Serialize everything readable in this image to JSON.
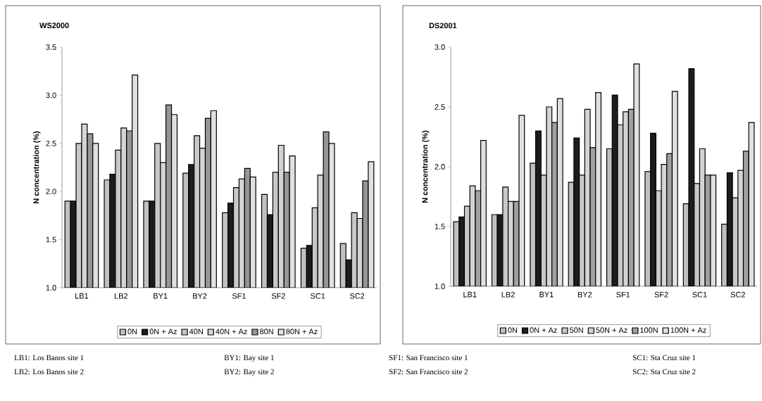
{
  "chart_data": [
    {
      "type": "bar",
      "title": "WS2000",
      "ylabel": "N concentration (%)",
      "categories": [
        "LB1",
        "LB2",
        "BY1",
        "BY2",
        "SF1",
        "SF2",
        "SC1",
        "SC2"
      ],
      "series": [
        {
          "name": "0N",
          "color": "#c0c0c0",
          "values": [
            1.9,
            2.12,
            1.9,
            2.19,
            1.78,
            1.97,
            1.41,
            1.46
          ]
        },
        {
          "name": "0N + Az",
          "color": "#1c1c1c",
          "values": [
            1.9,
            2.18,
            1.9,
            2.28,
            1.88,
            1.76,
            1.44,
            1.29
          ]
        },
        {
          "name": "40N",
          "color": "#c8c8c8",
          "values": [
            2.5,
            2.43,
            2.5,
            2.58,
            2.04,
            2.2,
            1.83,
            1.78
          ]
        },
        {
          "name": "40N + Az",
          "color": "#d4d4d4",
          "values": [
            2.7,
            2.66,
            2.3,
            2.45,
            2.13,
            2.48,
            2.17,
            1.72
          ]
        },
        {
          "name": "80N",
          "color": "#969696",
          "values": [
            2.6,
            2.63,
            2.9,
            2.76,
            2.24,
            2.2,
            2.62,
            2.11
          ]
        },
        {
          "name": "80N + Az",
          "color": "#e0e0e0",
          "values": [
            2.5,
            3.21,
            2.8,
            2.84,
            2.15,
            2.37,
            2.5,
            2.31
          ]
        }
      ],
      "ylim": [
        1,
        3.5
      ],
      "yticks": [
        {
          "value": 1,
          "label": "1.0"
        },
        {
          "value": 1.5,
          "label": "1.5"
        },
        {
          "value": 2,
          "label": "2.0"
        },
        {
          "value": 2.5,
          "label": "2.5"
        },
        {
          "value": 3,
          "label": "3.0"
        },
        {
          "value": 3.5,
          "label": "3.5"
        }
      ],
      "legend": "bottom",
      "annotations": [
        "LB1: Los Banos site 1",
        "LB2: Los Banos site 2",
        "BY1: Bay site 1",
        "BY2: Bay site 2"
      ]
    },
    {
      "type": "bar",
      "title": "DS2001",
      "ylabel": "N concentration (%)",
      "categories": [
        "LB1",
        "LB2",
        "BY1",
        "BY2",
        "SF1",
        "SF2",
        "SC1",
        "SC2"
      ],
      "series": [
        {
          "name": "0N",
          "color": "#c0c0c0",
          "values": [
            1.54,
            1.6,
            2.03,
            1.87,
            2.15,
            1.96,
            1.69,
            1.52
          ]
        },
        {
          "name": "0N + Az",
          "color": "#1c1c1c",
          "values": [
            1.58,
            1.6,
            2.3,
            2.24,
            2.6,
            2.28,
            2.82,
            1.95
          ]
        },
        {
          "name": "50N",
          "color": "#c8c8c8",
          "values": [
            1.67,
            1.83,
            1.93,
            1.93,
            2.35,
            1.8,
            1.86,
            1.74
          ]
        },
        {
          "name": "50N + Az",
          "color": "#d4d4d4",
          "values": [
            1.84,
            1.71,
            2.5,
            2.48,
            2.46,
            2.02,
            2.15,
            1.97
          ]
        },
        {
          "name": "100N",
          "color": "#a0a0a0",
          "values": [
            1.8,
            1.71,
            2.37,
            2.16,
            2.48,
            2.11,
            1.93,
            2.13
          ]
        },
        {
          "name": "100N + Az",
          "color": "#e0e0e0",
          "values": [
            2.22,
            2.43,
            2.57,
            2.62,
            2.86,
            2.63,
            1.93,
            2.37
          ]
        }
      ],
      "ylim": [
        1,
        3
      ],
      "yticks": [
        {
          "value": 1,
          "label": "1.0"
        },
        {
          "value": 1.5,
          "label": "1.5"
        },
        {
          "value": 2,
          "label": "2.0"
        },
        {
          "value": 2.5,
          "label": "2.5"
        },
        {
          "value": 3,
          "label": "3.0"
        }
      ],
      "legend": "bottom",
      "annotations": [
        "SF1: San Francisco site 1",
        "SF2: San Francisco site 2",
        "SC1: Sta Cruz site 1",
        "SC2: Sta Cruz site 2"
      ]
    }
  ]
}
